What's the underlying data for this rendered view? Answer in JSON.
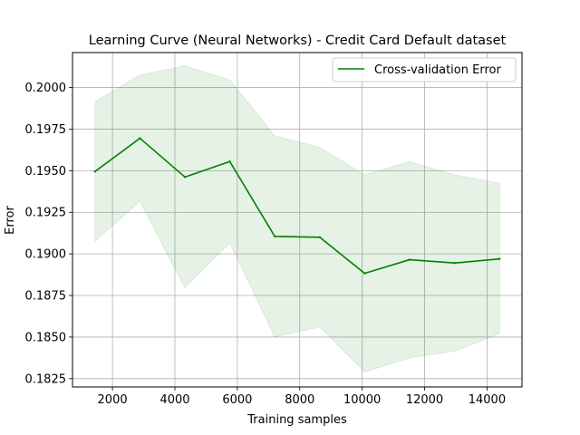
{
  "chart_data": {
    "type": "line",
    "title": "Learning Curve (Neural Networks) - Credit Card Default dataset",
    "xlabel": "Training samples",
    "ylabel": "Error",
    "xlim": [
      720,
      15120
    ],
    "ylim": [
      0.182,
      0.2021
    ],
    "xticks": [
      2000,
      4000,
      6000,
      8000,
      10000,
      12000,
      14000
    ],
    "yticks": [
      0.1825,
      0.185,
      0.1875,
      0.19,
      0.1925,
      0.195,
      0.1975,
      0.2
    ],
    "xtick_labels": [
      "2000",
      "4000",
      "6000",
      "8000",
      "10000",
      "12000",
      "14000"
    ],
    "ytick_labels": [
      "0.1825",
      "0.1850",
      "0.1875",
      "0.1900",
      "0.1925",
      "0.1950",
      "0.1975",
      "0.2000"
    ],
    "grid": true,
    "legend_position": "top-right",
    "series": [
      {
        "name": "Cross-validation Error",
        "color": "#008000",
        "x": [
          1440,
          2880,
          4320,
          5760,
          7200,
          8640,
          10080,
          11520,
          12960,
          14400
        ],
        "y": [
          0.19495,
          0.19695,
          0.19462,
          0.19555,
          0.19105,
          0.191,
          0.18883,
          0.18965,
          0.18945,
          0.1897
        ],
        "band_upper": [
          0.19915,
          0.20075,
          0.2013,
          0.20045,
          0.1971,
          0.1964,
          0.19475,
          0.19555,
          0.19475,
          0.19425
        ],
        "band_lower": [
          0.19075,
          0.19315,
          0.18795,
          0.19065,
          0.185,
          0.1856,
          0.1829,
          0.18375,
          0.18415,
          0.1852
        ],
        "band_color": "#008000"
      }
    ]
  }
}
